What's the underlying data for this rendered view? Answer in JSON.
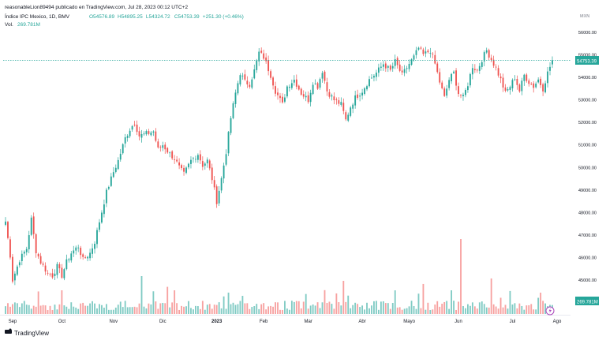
{
  "header": {
    "publisher": "reasonableLion89494 publicado en TradingView.com, Jul 28, 2023 00:12 UTC+2",
    "symbol": "Índice IPC Mexico, 1D, BMV",
    "ohlc": [
      {
        "k": "O",
        "v": "54576.89"
      },
      {
        "k": "H",
        "v": "54895.25"
      },
      {
        "k": "L",
        "v": "54324.72"
      },
      {
        "k": "C",
        "v": "54753.39"
      }
    ],
    "change": "+251.30 (+0.46%)",
    "vol_label": "Vol.",
    "vol_value": "269.781M"
  },
  "currency": "MXN",
  "price_tag": "54753.39",
  "volume_tag": "269.781M",
  "footer": {
    "brand": "TradingView"
  },
  "colors": {
    "up": "#26a69a",
    "down": "#ef5350",
    "up_vol": "#80cbc4",
    "down_vol": "#f7a1a0",
    "accent": "#2962ff"
  },
  "chart_data": {
    "type": "candlestick",
    "y_ticks": [
      "56000.00",
      "55000.00",
      "54000.00",
      "53000.00",
      "52000.00",
      "51000.00",
      "50000.00",
      "49000.00",
      "48000.00",
      "47000.00",
      "46000.00",
      "45000.00"
    ],
    "ylim": [
      44200,
      56600
    ],
    "x_ticks": [
      "Sep",
      "Oct",
      "Nov",
      "Dic",
      "2023",
      "Feb",
      "Mar",
      "Abr",
      "Mayo",
      "Jun",
      "Jul",
      "Ago"
    ],
    "x_tick_index": [
      3,
      24,
      46,
      67,
      90,
      110,
      129,
      152,
      172,
      193,
      216,
      238
    ],
    "last_close": 54753.39,
    "anchors": [
      [
        0,
        47600
      ],
      [
        2,
        46100
      ],
      [
        3,
        45000
      ],
      [
        6,
        45900
      ],
      [
        9,
        46400
      ],
      [
        11,
        47700
      ],
      [
        13,
        46300
      ],
      [
        15,
        45800
      ],
      [
        18,
        45300
      ],
      [
        20,
        45200
      ],
      [
        22,
        45600
      ],
      [
        24,
        45200
      ],
      [
        26,
        45800
      ],
      [
        28,
        46200
      ],
      [
        31,
        46500
      ],
      [
        33,
        45900
      ],
      [
        36,
        46200
      ],
      [
        38,
        46700
      ],
      [
        40,
        47600
      ],
      [
        43,
        48900
      ],
      [
        46,
        49800
      ],
      [
        48,
        50300
      ],
      [
        51,
        51300
      ],
      [
        53,
        51700
      ],
      [
        55,
        52000
      ],
      [
        57,
        51400
      ],
      [
        60,
        51500
      ],
      [
        63,
        51600
      ],
      [
        65,
        50800
      ],
      [
        67,
        51000
      ],
      [
        70,
        50600
      ],
      [
        72,
        50400
      ],
      [
        74,
        50000
      ],
      [
        76,
        49700
      ],
      [
        79,
        50300
      ],
      [
        82,
        50600
      ],
      [
        84,
        50100
      ],
      [
        86,
        50300
      ],
      [
        88,
        49500
      ],
      [
        90,
        48500
      ],
      [
        92,
        49500
      ],
      [
        94,
        50700
      ],
      [
        96,
        52200
      ],
      [
        98,
        53300
      ],
      [
        100,
        54200
      ],
      [
        102,
        53800
      ],
      [
        104,
        53700
      ],
      [
        106,
        54300
      ],
      [
        108,
        55100
      ],
      [
        110,
        54900
      ],
      [
        113,
        54100
      ],
      [
        115,
        53400
      ],
      [
        118,
        52800
      ],
      [
        120,
        53600
      ],
      [
        123,
        53900
      ],
      [
        126,
        53300
      ],
      [
        129,
        53000
      ],
      [
        131,
        53800
      ],
      [
        133,
        53600
      ],
      [
        135,
        54300
      ],
      [
        137,
        53400
      ],
      [
        140,
        53000
      ],
      [
        143,
        52800
      ],
      [
        145,
        52100
      ],
      [
        147,
        52700
      ],
      [
        149,
        53100
      ],
      [
        152,
        53400
      ],
      [
        155,
        53900
      ],
      [
        158,
        54200
      ],
      [
        161,
        54600
      ],
      [
        164,
        54300
      ],
      [
        166,
        54700
      ],
      [
        169,
        54100
      ],
      [
        172,
        54600
      ],
      [
        174,
        54900
      ],
      [
        176,
        55300
      ],
      [
        178,
        55000
      ],
      [
        181,
        55200
      ],
      [
        183,
        54600
      ],
      [
        185,
        53800
      ],
      [
        187,
        53100
      ],
      [
        189,
        53900
      ],
      [
        191,
        54200
      ],
      [
        193,
        53300
      ],
      [
        195,
        53100
      ],
      [
        197,
        53700
      ],
      [
        199,
        54500
      ],
      [
        201,
        54300
      ],
      [
        203,
        54800
      ],
      [
        205,
        55200
      ],
      [
        207,
        54800
      ],
      [
        209,
        54400
      ],
      [
        211,
        53900
      ],
      [
        213,
        53300
      ],
      [
        215,
        53600
      ],
      [
        217,
        54000
      ],
      [
        219,
        53400
      ],
      [
        221,
        54100
      ],
      [
        223,
        53800
      ],
      [
        225,
        53600
      ],
      [
        227,
        53900
      ],
      [
        229,
        53500
      ],
      [
        231,
        54200
      ],
      [
        233,
        54753
      ]
    ]
  }
}
